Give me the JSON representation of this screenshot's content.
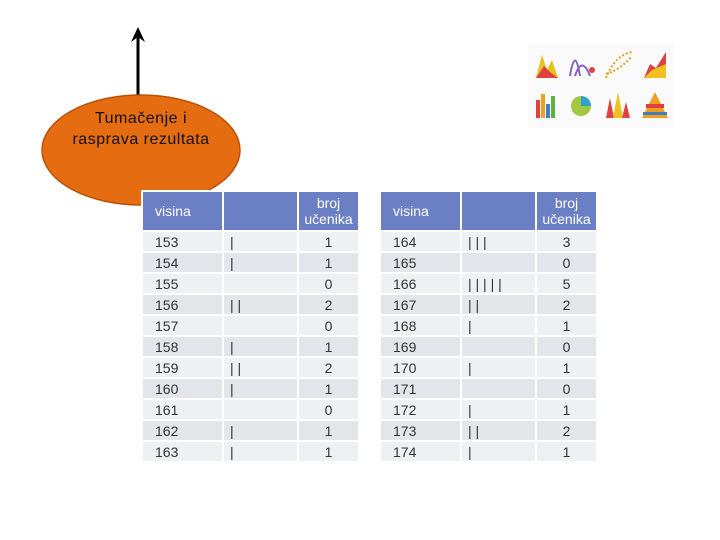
{
  "callout": "Tumačenje i rasprava rezultata",
  "tables": [
    {
      "header": {
        "height": "visina",
        "count": "broj učenika"
      },
      "rows": [
        [
          153,
          "|",
          1
        ],
        [
          154,
          "|",
          1
        ],
        [
          155,
          null,
          0
        ],
        [
          156,
          "| |",
          2
        ],
        [
          157,
          null,
          0
        ],
        [
          158,
          "|",
          1
        ],
        [
          159,
          "| |",
          2
        ],
        [
          160,
          "|",
          1
        ],
        [
          161,
          null,
          0
        ],
        [
          162,
          "|",
          1
        ],
        [
          163,
          "|",
          1
        ]
      ]
    },
    {
      "header": {
        "height": "visina",
        "count": "broj učenika"
      },
      "rows": [
        [
          164,
          "| | |",
          3
        ],
        [
          165,
          null,
          0
        ],
        [
          166,
          "| | | | |",
          5
        ],
        [
          167,
          "| |",
          2
        ],
        [
          168,
          "|",
          1
        ],
        [
          169,
          null,
          0
        ],
        [
          170,
          "|",
          1
        ],
        [
          171,
          null,
          0
        ],
        [
          172,
          "|",
          1
        ],
        [
          173,
          "| |",
          2
        ],
        [
          174,
          "|",
          1
        ]
      ]
    }
  ]
}
